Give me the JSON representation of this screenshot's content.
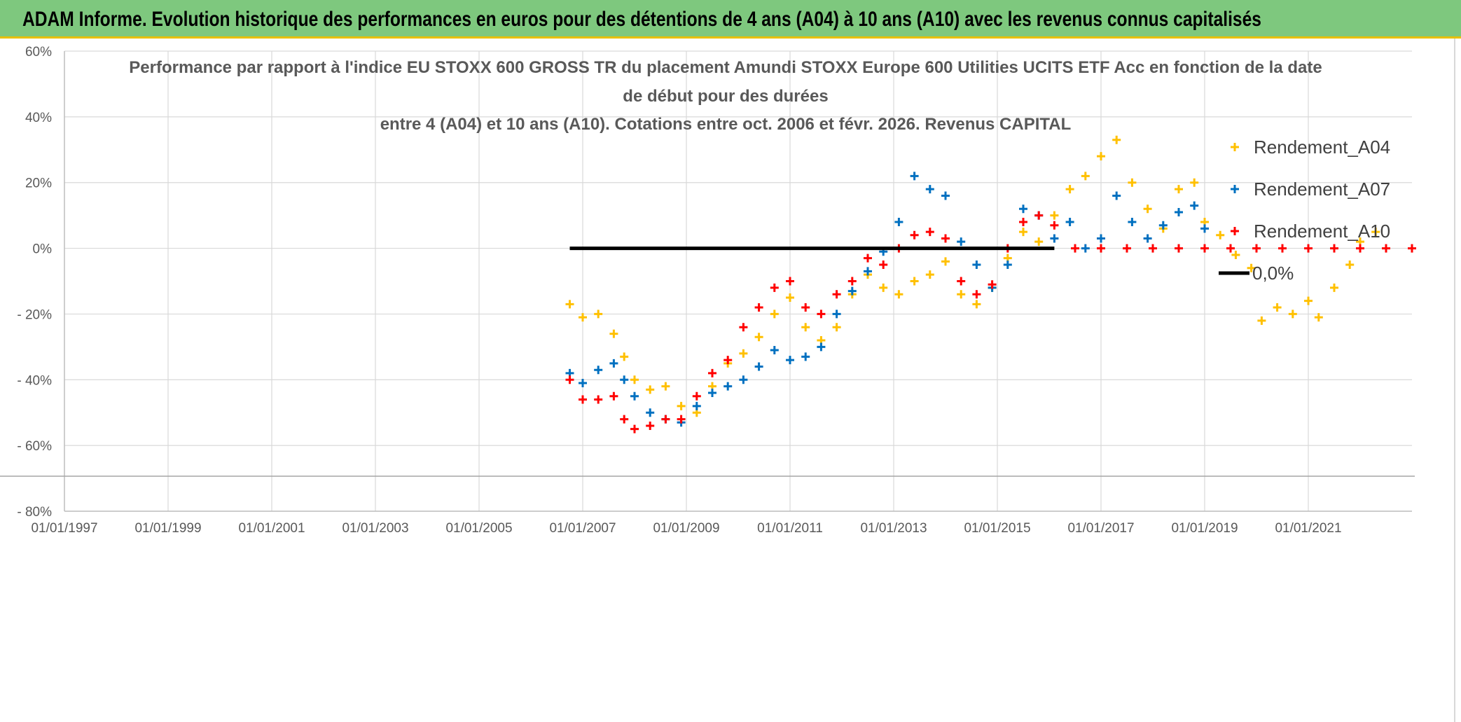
{
  "header": {
    "banner_title": "ADAM Informe. Evolution historique des performances en euros pour des détentions de 4 ans (A04) à 10 ans (A10) avec les revenus connus capitalisés"
  },
  "chart_data": {
    "type": "scatter",
    "title_lines": [
      "Performance par rapport à l'indice EU STOXX 600 GROSS TR  du placement Amundi STOXX Europe 600 Utilities UCITS ETF Acc en fonction de la date",
      "de début pour des durées",
      "entre 4 (A04) et 10 ans (A10). Cotations entre oct. 2006 et févr. 2026. Revenus CAPITAL"
    ],
    "xlabel": "",
    "ylabel": "",
    "xlim": [
      1997.0,
      2023.0
    ],
    "ylim": [
      -80,
      60
    ],
    "y_ticks": [
      60,
      40,
      20,
      0,
      -20,
      -40,
      -60,
      -80
    ],
    "y_tick_labels": [
      "60%",
      "40%",
      "20%",
      "0%",
      "- 20%",
      "- 40%",
      "- 60%",
      "- 80%"
    ],
    "x_ticks": [
      1997,
      1999,
      2001,
      2003,
      2005,
      2007,
      2009,
      2011,
      2013,
      2015,
      2017,
      2019,
      2021
    ],
    "x_tick_labels": [
      "01/01/1997",
      "01/01/1999",
      "01/01/2001",
      "01/01/2003",
      "01/01/2005",
      "01/01/2007",
      "01/01/2009",
      "01/01/2011",
      "01/01/2013",
      "01/01/2015",
      "01/01/2017",
      "01/01/2019",
      "01/01/2021"
    ],
    "grid": true,
    "legend_position": "top-right",
    "series": [
      {
        "name": "Rendement_A04",
        "color": "#ffc000",
        "marker": "plus",
        "x": [
          2006.75,
          2007.0,
          2007.3,
          2007.6,
          2007.8,
          2008.0,
          2008.3,
          2008.6,
          2008.9,
          2009.2,
          2009.5,
          2009.8,
          2010.1,
          2010.4,
          2010.7,
          2011.0,
          2011.3,
          2011.6,
          2011.9,
          2012.2,
          2012.5,
          2012.8,
          2013.1,
          2013.4,
          2013.7,
          2014.0,
          2014.3,
          2014.6,
          2014.9,
          2015.2,
          2015.5,
          2015.8,
          2016.1,
          2016.4,
          2016.7,
          2017.0,
          2017.3,
          2017.6,
          2017.9,
          2018.2,
          2018.5,
          2018.8,
          2019.0,
          2019.3,
          2019.6,
          2019.9,
          2020.1,
          2020.4,
          2020.7,
          2021.0,
          2021.2,
          2021.5,
          2021.8,
          2022.0,
          2022.3
        ],
        "values": [
          -17,
          -21,
          -20,
          -26,
          -33,
          -40,
          -43,
          -42,
          -48,
          -50,
          -42,
          -35,
          -32,
          -27,
          -20,
          -15,
          -24,
          -28,
          -24,
          -14,
          -8,
          -12,
          -14,
          -10,
          -8,
          -4,
          -14,
          -17,
          -12,
          -3,
          5,
          2,
          10,
          18,
          22,
          28,
          33,
          20,
          12,
          6,
          18,
          20,
          8,
          4,
          -2,
          -6,
          -22,
          -18,
          -20,
          -16,
          -21,
          -12,
          -5,
          2,
          5
        ]
      },
      {
        "name": "Rendement_A07",
        "color": "#0070c0",
        "marker": "plus",
        "x": [
          2006.75,
          2007.0,
          2007.3,
          2007.6,
          2007.8,
          2008.0,
          2008.3,
          2008.6,
          2008.9,
          2009.2,
          2009.5,
          2009.8,
          2010.1,
          2010.4,
          2010.7,
          2011.0,
          2011.3,
          2011.6,
          2011.9,
          2012.2,
          2012.5,
          2012.8,
          2013.1,
          2013.4,
          2013.7,
          2014.0,
          2014.3,
          2014.6,
          2014.9,
          2015.2,
          2015.5,
          2015.8,
          2016.1,
          2016.4,
          2016.7,
          2017.0,
          2017.3,
          2017.6,
          2017.9,
          2018.2,
          2018.5,
          2018.8,
          2019.0
        ],
        "values": [
          -38,
          -41,
          -37,
          -35,
          -40,
          -45,
          -50,
          -52,
          -53,
          -48,
          -44,
          -42,
          -40,
          -36,
          -31,
          -34,
          -33,
          -30,
          -20,
          -13,
          -7,
          -1,
          8,
          22,
          18,
          16,
          2,
          -5,
          -12,
          -5,
          12,
          10,
          3,
          8,
          0,
          3,
          16,
          8,
          3,
          7,
          11,
          13,
          6
        ]
      },
      {
        "name": "Rendement_A10",
        "color": "#ff0000",
        "marker": "plus",
        "x": [
          2006.75,
          2007.0,
          2007.3,
          2007.6,
          2007.8,
          2008.0,
          2008.3,
          2008.6,
          2008.9,
          2009.2,
          2009.5,
          2009.8,
          2010.1,
          2010.4,
          2010.7,
          2011.0,
          2011.3,
          2011.6,
          2011.9,
          2012.2,
          2012.5,
          2012.8,
          2013.1,
          2013.4,
          2013.7,
          2014.0,
          2014.3,
          2014.6,
          2014.9,
          2015.2,
          2015.5,
          2015.8,
          2016.1,
          2016.5,
          2017.0,
          2017.5,
          2018.0,
          2018.5,
          2019.0,
          2019.5,
          2020.0,
          2020.5,
          2021.0,
          2021.5,
          2022.0,
          2022.5,
          2023.0
        ],
        "values": [
          -40,
          -46,
          -46,
          -45,
          -52,
          -55,
          -54,
          -52,
          -52,
          -45,
          -38,
          -34,
          -24,
          -18,
          -12,
          -10,
          -18,
          -20,
          -14,
          -10,
          -3,
          -5,
          0,
          4,
          5,
          3,
          -10,
          -14,
          -11,
          0,
          8,
          10,
          7,
          0,
          0,
          0,
          0,
          0,
          0,
          0,
          0,
          0,
          0,
          0,
          0,
          0,
          0
        ]
      },
      {
        "name": "0,0%",
        "color": "#000000",
        "marker": "line",
        "x": [
          2006.75,
          2016.1
        ],
        "values": [
          0,
          0
        ]
      }
    ]
  }
}
